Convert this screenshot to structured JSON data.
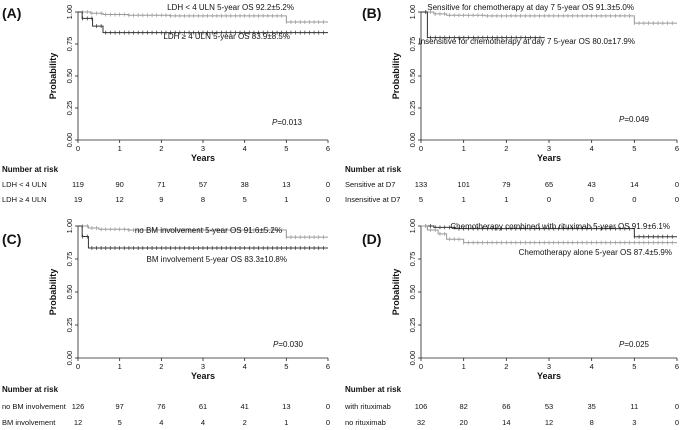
{
  "chart_data": [
    {
      "type": "line",
      "subtype": "kaplan-meier",
      "panel": "(A)",
      "xlabel": "Years",
      "ylabel": "Probability",
      "xlim": [
        0,
        6
      ],
      "ylim": [
        0,
        1
      ],
      "xticks": [
        "0",
        "1",
        "2",
        "3",
        "4",
        "5",
        "6"
      ],
      "yticks": [
        "0.00",
        "0.25",
        "0.50",
        "0.75",
        "1.00"
      ],
      "p_value_prefix": "P",
      "p_value": "=0.013",
      "risk_title": "Number at risk",
      "series": [
        {
          "name": "LDH < 4 ULN",
          "label": "LDH < 4 ULN 5-year OS 92.2±5.2%",
          "color": "#999999",
          "steps": [
            [
              0,
              1.0
            ],
            [
              0.3,
              0.99
            ],
            [
              0.6,
              0.98
            ],
            [
              1.2,
              0.975
            ],
            [
              2.2,
              0.97
            ],
            [
              5.0,
              0.922
            ],
            [
              6.0,
              0.922
            ]
          ],
          "risk": [
            "119",
            "90",
            "71",
            "57",
            "38",
            "13",
            "0"
          ]
        },
        {
          "name": "LDH ≥ 4 ULN",
          "label": "LDH ≥ 4 ULN 5-year OS 83.9±8.5%",
          "color": "#333333",
          "steps": [
            [
              0,
              1.0
            ],
            [
              0.1,
              0.95
            ],
            [
              0.35,
              0.89
            ],
            [
              0.6,
              0.839
            ],
            [
              6.0,
              0.839
            ]
          ],
          "risk": [
            "19",
            "12",
            "9",
            "8",
            "5",
            "1",
            "0"
          ]
        }
      ]
    },
    {
      "type": "line",
      "subtype": "kaplan-meier",
      "panel": "(B)",
      "xlabel": "Years",
      "ylabel": "Probability",
      "xlim": [
        0,
        6
      ],
      "ylim": [
        0,
        1
      ],
      "xticks": [
        "0",
        "1",
        "2",
        "3",
        "4",
        "5",
        "6"
      ],
      "yticks": [
        "0.00",
        "0.25",
        "0.50",
        "0.75",
        "1.00"
      ],
      "p_value_prefix": "P",
      "p_value": "=0.049",
      "risk_title": "Number at risk",
      "series": [
        {
          "name": "Sensitive at D7",
          "label": "Sensitive for chemotherapy at day 7 5-year OS 91.3±5.0%",
          "color": "#999999",
          "steps": [
            [
              0,
              1.0
            ],
            [
              0.3,
              0.985
            ],
            [
              0.6,
              0.975
            ],
            [
              1.5,
              0.97
            ],
            [
              4.9,
              0.97
            ],
            [
              5.0,
              0.913
            ],
            [
              6.0,
              0.913
            ]
          ],
          "risk": [
            "133",
            "101",
            "79",
            "65",
            "43",
            "14",
            "0"
          ]
        },
        {
          "name": "Insensitive at D7",
          "label": "Insensitive for chemotherapy at day 7 5-year OS 80.0±17.9%",
          "color": "#333333",
          "steps": [
            [
              0,
              1.0
            ],
            [
              0.15,
              0.8
            ],
            [
              2.9,
              0.8
            ]
          ],
          "risk": [
            "5",
            "1",
            "1",
            "0",
            "0",
            "0",
            "0"
          ]
        }
      ]
    },
    {
      "type": "line",
      "subtype": "kaplan-meier",
      "panel": "(C)",
      "xlabel": "Years",
      "ylabel": "Probability",
      "xlim": [
        0,
        6
      ],
      "ylim": [
        0,
        1
      ],
      "xticks": [
        "0",
        "1",
        "2",
        "3",
        "4",
        "5",
        "6"
      ],
      "yticks": [
        "0.00",
        "0.25",
        "0.50",
        "0.75",
        "1.00"
      ],
      "p_value_prefix": "P",
      "p_value": "=0.030",
      "risk_title": "Number at risk",
      "series": [
        {
          "name": "no BM involvement",
          "label": "no BM involvement 5-year OS 91.6±5.2%",
          "color": "#999999",
          "steps": [
            [
              0,
              1.0
            ],
            [
              0.25,
              0.985
            ],
            [
              0.5,
              0.975
            ],
            [
              1.2,
              0.97
            ],
            [
              4.9,
              0.97
            ],
            [
              5.0,
              0.916
            ],
            [
              6.0,
              0.916
            ]
          ],
          "risk": [
            "126",
            "97",
            "76",
            "61",
            "41",
            "13",
            "0"
          ]
        },
        {
          "name": "BM involvement",
          "label": "BM involvement 5-year OS 83.3±10.8%",
          "color": "#333333",
          "steps": [
            [
              0,
              1.0
            ],
            [
              0.1,
              0.92
            ],
            [
              0.25,
              0.833
            ],
            [
              6.0,
              0.833
            ]
          ],
          "risk": [
            "12",
            "5",
            "4",
            "4",
            "2",
            "1",
            "0"
          ]
        }
      ]
    },
    {
      "type": "line",
      "subtype": "kaplan-meier",
      "panel": "(D)",
      "xlabel": "Years",
      "ylabel": "Probability",
      "xlim": [
        0,
        6
      ],
      "ylim": [
        0,
        1
      ],
      "xticks": [
        "0",
        "1",
        "2",
        "3",
        "4",
        "5",
        "6"
      ],
      "yticks": [
        "0.00",
        "0.25",
        "0.50",
        "0.75",
        "1.00"
      ],
      "p_value_prefix": "P",
      "p_value": "=0.025",
      "risk_title": "Number at risk",
      "series": [
        {
          "name": "with rituximab",
          "label": "Chemotherapy combined with rituximab 5-year OS 91.9±6.1%",
          "color": "#333333",
          "steps": [
            [
              0,
              1.0
            ],
            [
              0.3,
              0.99
            ],
            [
              0.8,
              0.98
            ],
            [
              4.9,
              0.98
            ],
            [
              5.0,
              0.919
            ],
            [
              6.0,
              0.919
            ]
          ],
          "risk": [
            "106",
            "82",
            "66",
            "53",
            "35",
            "11",
            "0"
          ]
        },
        {
          "name": "no rituximab",
          "label": "Chemotherapy alone 5-year OS 87.4±5.9%",
          "color": "#999999",
          "steps": [
            [
              0,
              1.0
            ],
            [
              0.15,
              0.97
            ],
            [
              0.4,
              0.94
            ],
            [
              0.6,
              0.9
            ],
            [
              1.0,
              0.874
            ],
            [
              6.0,
              0.874
            ]
          ],
          "risk": [
            "32",
            "20",
            "14",
            "12",
            "8",
            "3",
            "0"
          ]
        }
      ]
    }
  ]
}
